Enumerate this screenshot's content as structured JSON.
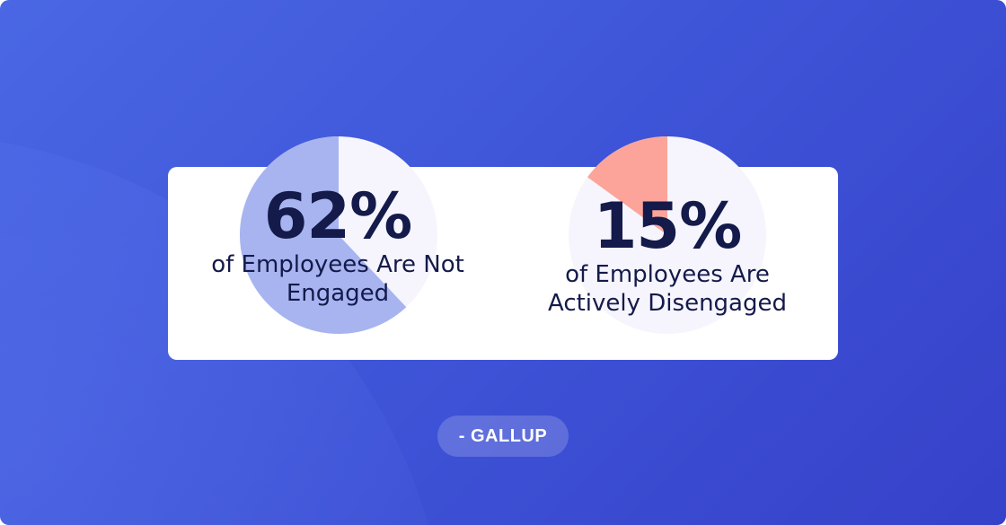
{
  "chart_data": [
    {
      "type": "pie",
      "value": 62,
      "unit": "%",
      "value_label": "62%",
      "label": "of Employees Are Not Engaged",
      "label_lines": [
        "of Employees Are Not",
        "Engaged"
      ],
      "slice_color": "#a7b4f0",
      "rest_color": "#f6f5fd"
    },
    {
      "type": "pie",
      "value": 15,
      "unit": "%",
      "value_label": "15%",
      "label": "of Employees Are Actively Disengaged",
      "label_lines": [
        "of Employees Are",
        "Actively Disengaged"
      ],
      "slice_color": "#fca49a",
      "rest_color": "#f6f5fd"
    }
  ],
  "source": "- GALLUP",
  "colors": {
    "background_start": "#4a67e4",
    "background_end": "#3641c9",
    "text": "#141a4a"
  }
}
